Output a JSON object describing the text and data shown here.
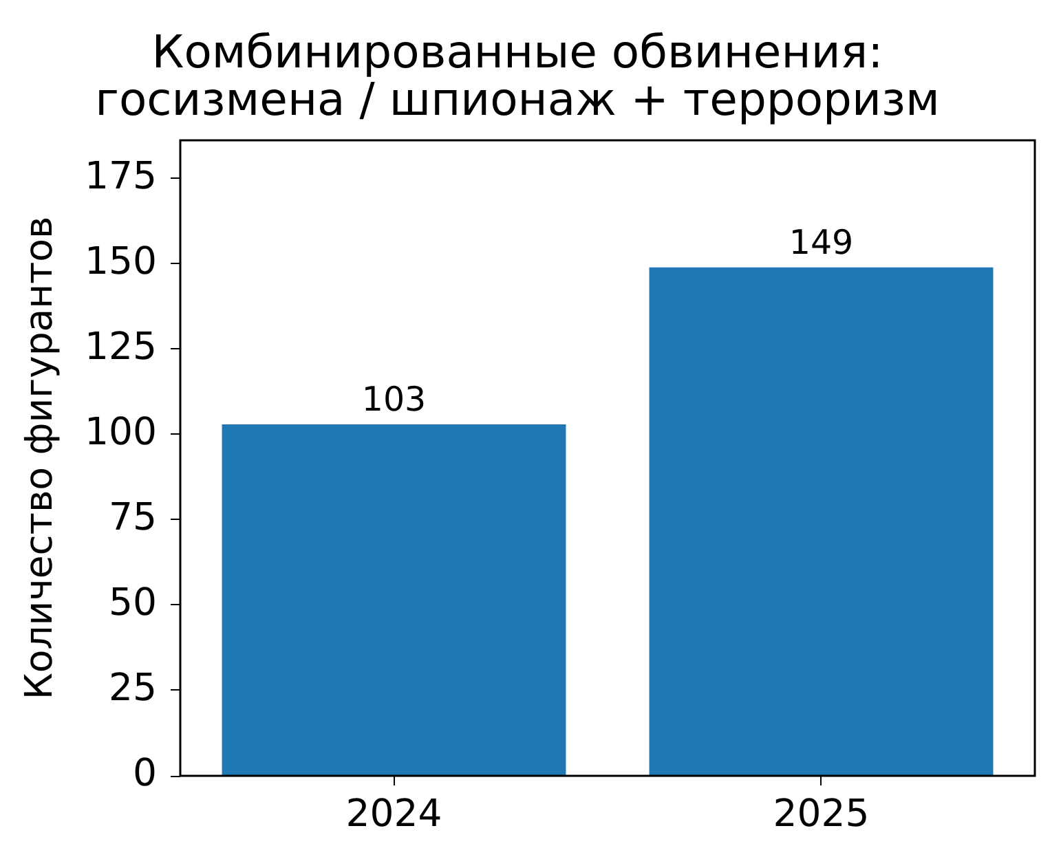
{
  "chart_data": {
    "type": "bar",
    "title": "Комбинированные обвинения:\nгосизмена / шпионаж + терроризм",
    "ylabel": "Количество фигурантов",
    "categories": [
      "2024",
      "2025"
    ],
    "values": [
      103,
      149
    ],
    "color": "#1f77b4",
    "ylim": [
      0,
      186.25
    ],
    "yticks": [
      0,
      25,
      50,
      75,
      100,
      125,
      150,
      175
    ],
    "grid": false,
    "data_labels": true
  }
}
